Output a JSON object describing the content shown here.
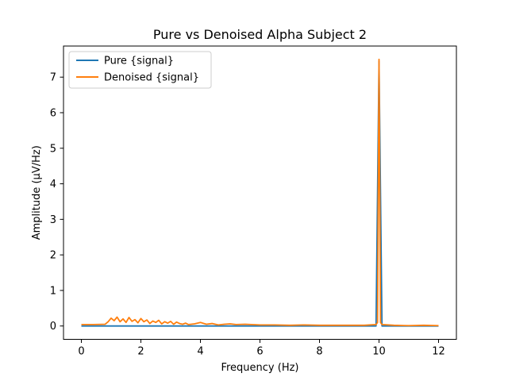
{
  "chart_data": {
    "type": "line",
    "title": "Pure vs Denoised Alpha Subject 2",
    "xlabel": "Frequency (Hz)",
    "ylabel": "Amplitude (μV/Hz)",
    "xlim": [
      -0.6,
      12.6
    ],
    "ylim": [
      -0.375,
      7.875
    ],
    "x_ticks": [
      0,
      2,
      4,
      6,
      8,
      10,
      12
    ],
    "y_ticks": [
      0,
      1,
      2,
      3,
      4,
      5,
      6,
      7
    ],
    "x_tick_labels": [
      "0",
      "2",
      "4",
      "6",
      "8",
      "10",
      "12"
    ],
    "y_tick_labels": [
      "0",
      "1",
      "2",
      "3",
      "4",
      "5",
      "6",
      "7"
    ],
    "grid": false,
    "legend_position": "top-left",
    "series": [
      {
        "name": "Pure {signal}",
        "color": "#1f77b4",
        "x": [
          0,
          1,
          2,
          3,
          4,
          5,
          6,
          7,
          8,
          9,
          9.9,
          10.0,
          10.1,
          11,
          12
        ],
        "y": [
          0.0,
          0.0,
          0.0,
          0.0,
          0.0,
          0.0,
          0.0,
          0.0,
          0.0,
          0.0,
          0.0,
          7.45,
          0.0,
          0.0,
          0.0
        ]
      },
      {
        "name": "Denoised {signal}",
        "color": "#ff7f0e",
        "x": [
          0,
          0.4,
          0.8,
          0.9,
          1.0,
          1.1,
          1.2,
          1.3,
          1.4,
          1.5,
          1.6,
          1.7,
          1.8,
          1.9,
          2.0,
          2.1,
          2.2,
          2.3,
          2.4,
          2.5,
          2.6,
          2.7,
          2.8,
          2.9,
          3.0,
          3.1,
          3.2,
          3.3,
          3.4,
          3.5,
          3.6,
          3.8,
          4.0,
          4.2,
          4.4,
          4.6,
          4.8,
          5.0,
          5.2,
          5.5,
          6.0,
          6.5,
          7.0,
          7.5,
          8.0,
          8.5,
          9.0,
          9.5,
          9.9,
          9.95,
          10.0,
          10.05,
          10.1,
          10.5,
          11.0,
          11.5,
          12.0
        ],
        "y": [
          0.04,
          0.04,
          0.05,
          0.12,
          0.22,
          0.15,
          0.25,
          0.12,
          0.2,
          0.1,
          0.24,
          0.13,
          0.18,
          0.09,
          0.21,
          0.12,
          0.17,
          0.07,
          0.14,
          0.1,
          0.16,
          0.06,
          0.12,
          0.08,
          0.13,
          0.05,
          0.11,
          0.07,
          0.05,
          0.08,
          0.04,
          0.06,
          0.1,
          0.05,
          0.07,
          0.03,
          0.05,
          0.06,
          0.04,
          0.05,
          0.03,
          0.03,
          0.02,
          0.03,
          0.02,
          0.02,
          0.02,
          0.02,
          0.04,
          0.1,
          7.5,
          0.1,
          0.04,
          0.02,
          0.01,
          0.02,
          0.01
        ]
      }
    ]
  }
}
